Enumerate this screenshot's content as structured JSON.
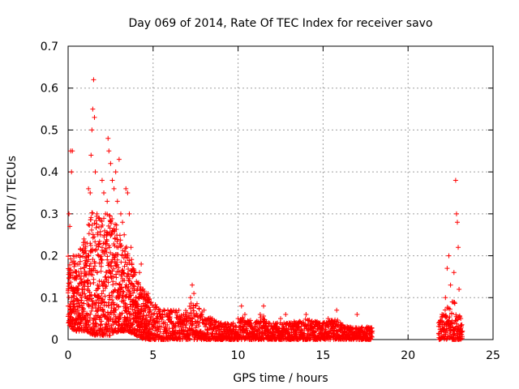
{
  "chart_data": {
    "type": "scatter",
    "title": "Day 069 of 2014, Rate Of TEC Index for receiver savo",
    "xlabel": "GPS time / hours",
    "ylabel": "ROTI / TECUs",
    "xlim": [
      0,
      25
    ],
    "ylim": [
      0,
      0.7
    ],
    "x_ticks": [
      "0",
      "5",
      "10",
      "15",
      "20",
      "25"
    ],
    "x_tick_values": [
      0,
      5,
      10,
      15,
      20,
      25
    ],
    "y_ticks": [
      "0",
      "0.1",
      "0.2",
      "0.3",
      "0.4",
      "0.5",
      "0.6",
      "0.7"
    ],
    "y_tick_values": [
      0,
      0.1,
      0.2,
      0.3,
      0.4,
      0.5,
      0.6,
      0.7
    ],
    "grid": true,
    "marker": "+",
    "series": [
      {
        "name": "ROTI",
        "color": "#ff0000",
        "points": [
          [
            0.0,
            0.08
          ],
          [
            0.05,
            0.3
          ],
          [
            0.1,
            0.27
          ],
          [
            0.15,
            0.45
          ],
          [
            0.2,
            0.4
          ],
          [
            0.25,
            0.45
          ],
          [
            0.3,
            0.2
          ],
          [
            0.35,
            0.03
          ],
          [
            0.4,
            0.18
          ],
          [
            0.5,
            0.15
          ],
          [
            0.6,
            0.12
          ],
          [
            0.7,
            0.2
          ],
          [
            0.8,
            0.1
          ],
          [
            0.9,
            0.13
          ],
          [
            1.0,
            0.18
          ],
          [
            1.1,
            0.1
          ],
          [
            1.2,
            0.36
          ],
          [
            1.3,
            0.35
          ],
          [
            1.35,
            0.44
          ],
          [
            1.4,
            0.5
          ],
          [
            1.45,
            0.55
          ],
          [
            1.5,
            0.62
          ],
          [
            1.55,
            0.53
          ],
          [
            1.6,
            0.4
          ],
          [
            1.7,
            0.3
          ],
          [
            1.8,
            0.2
          ],
          [
            1.9,
            0.25
          ],
          [
            2.0,
            0.38
          ],
          [
            2.1,
            0.35
          ],
          [
            2.2,
            0.3
          ],
          [
            2.3,
            0.33
          ],
          [
            2.35,
            0.48
          ],
          [
            2.4,
            0.45
          ],
          [
            2.5,
            0.42
          ],
          [
            2.6,
            0.38
          ],
          [
            2.7,
            0.36
          ],
          [
            2.8,
            0.4
          ],
          [
            2.9,
            0.33
          ],
          [
            3.0,
            0.43
          ],
          [
            3.1,
            0.3
          ],
          [
            3.2,
            0.28
          ],
          [
            3.3,
            0.25
          ],
          [
            3.4,
            0.36
          ],
          [
            3.5,
            0.35
          ],
          [
            3.6,
            0.3
          ],
          [
            3.7,
            0.22
          ],
          [
            3.8,
            0.15
          ],
          [
            3.9,
            0.12
          ],
          [
            4.0,
            0.1
          ],
          [
            4.1,
            0.08
          ],
          [
            4.2,
            0.16
          ],
          [
            4.3,
            0.18
          ],
          [
            4.4,
            0.12
          ],
          [
            4.5,
            0.1
          ],
          [
            4.6,
            0.08
          ],
          [
            4.7,
            0.11
          ],
          [
            4.8,
            0.07
          ],
          [
            5.0,
            0.06
          ],
          [
            5.2,
            0.05
          ],
          [
            5.4,
            0.07
          ],
          [
            5.6,
            0.04
          ],
          [
            5.8,
            0.06
          ],
          [
            6.0,
            0.05
          ],
          [
            6.2,
            0.07
          ],
          [
            6.5,
            0.04
          ],
          [
            6.8,
            0.06
          ],
          [
            7.0,
            0.05
          ],
          [
            7.2,
            0.1
          ],
          [
            7.3,
            0.13
          ],
          [
            7.4,
            0.11
          ],
          [
            7.5,
            0.08
          ],
          [
            7.8,
            0.05
          ],
          [
            8.0,
            0.07
          ],
          [
            8.3,
            0.04
          ],
          [
            8.6,
            0.03
          ],
          [
            9.0,
            0.04
          ],
          [
            9.3,
            0.03
          ],
          [
            9.6,
            0.02
          ],
          [
            10.0,
            0.05
          ],
          [
            10.2,
            0.08
          ],
          [
            10.4,
            0.06
          ],
          [
            10.8,
            0.03
          ],
          [
            11.0,
            0.04
          ],
          [
            11.3,
            0.06
          ],
          [
            11.5,
            0.08
          ],
          [
            11.8,
            0.04
          ],
          [
            12.2,
            0.02
          ],
          [
            12.5,
            0.05
          ],
          [
            12.8,
            0.06
          ],
          [
            13.0,
            0.04
          ],
          [
            13.3,
            0.03
          ],
          [
            13.6,
            0.04
          ],
          [
            14.0,
            0.06
          ],
          [
            14.3,
            0.03
          ],
          [
            14.6,
            0.02
          ],
          [
            15.0,
            0.04
          ],
          [
            15.3,
            0.05
          ],
          [
            15.6,
            0.03
          ],
          [
            15.8,
            0.07
          ],
          [
            16.0,
            0.03
          ],
          [
            16.3,
            0.02
          ],
          [
            16.6,
            0.03
          ],
          [
            17.0,
            0.06
          ],
          [
            17.3,
            0.02
          ],
          [
            17.6,
            0.03
          ],
          [
            17.9,
            0.02
          ],
          [
            21.8,
            0.04
          ],
          [
            22.0,
            0.06
          ],
          [
            22.2,
            0.1
          ],
          [
            22.3,
            0.17
          ],
          [
            22.4,
            0.2
          ],
          [
            22.5,
            0.13
          ],
          [
            22.6,
            0.09
          ],
          [
            22.7,
            0.16
          ],
          [
            22.8,
            0.38
          ],
          [
            22.85,
            0.3
          ],
          [
            22.9,
            0.28
          ],
          [
            22.95,
            0.22
          ],
          [
            23.0,
            0.12
          ],
          [
            23.1,
            0.05
          ],
          [
            23.2,
            0.02
          ]
        ],
        "band": [
          [
            0.0,
            0.03,
            0.2
          ],
          [
            0.5,
            0.02,
            0.2
          ],
          [
            1.0,
            0.02,
            0.25
          ],
          [
            1.5,
            0.01,
            0.32
          ],
          [
            2.0,
            0.01,
            0.3
          ],
          [
            2.5,
            0.01,
            0.3
          ],
          [
            3.0,
            0.02,
            0.28
          ],
          [
            3.5,
            0.02,
            0.22
          ],
          [
            4.0,
            0.01,
            0.16
          ],
          [
            4.5,
            0.0,
            0.12
          ],
          [
            5.0,
            0.0,
            0.09
          ],
          [
            6.0,
            0.0,
            0.07
          ],
          [
            7.0,
            0.0,
            0.07
          ],
          [
            7.4,
            0.0,
            0.1
          ],
          [
            8.0,
            0.0,
            0.06
          ],
          [
            9.0,
            0.0,
            0.04
          ],
          [
            10.0,
            0.0,
            0.04
          ],
          [
            10.3,
            0.0,
            0.06
          ],
          [
            11.0,
            0.0,
            0.04
          ],
          [
            11.5,
            0.0,
            0.06
          ],
          [
            12.0,
            0.0,
            0.04
          ],
          [
            13.0,
            0.0,
            0.04
          ],
          [
            14.0,
            0.0,
            0.05
          ],
          [
            15.0,
            0.0,
            0.04
          ],
          [
            15.8,
            0.0,
            0.05
          ],
          [
            16.5,
            0.0,
            0.03
          ],
          [
            17.5,
            0.0,
            0.03
          ],
          [
            17.9,
            0.0,
            0.03
          ],
          [
            21.8,
            0.0,
            0.04
          ],
          [
            22.3,
            0.0,
            0.08
          ],
          [
            22.8,
            0.0,
            0.1
          ],
          [
            23.2,
            0.0,
            0.03
          ]
        ]
      }
    ]
  }
}
